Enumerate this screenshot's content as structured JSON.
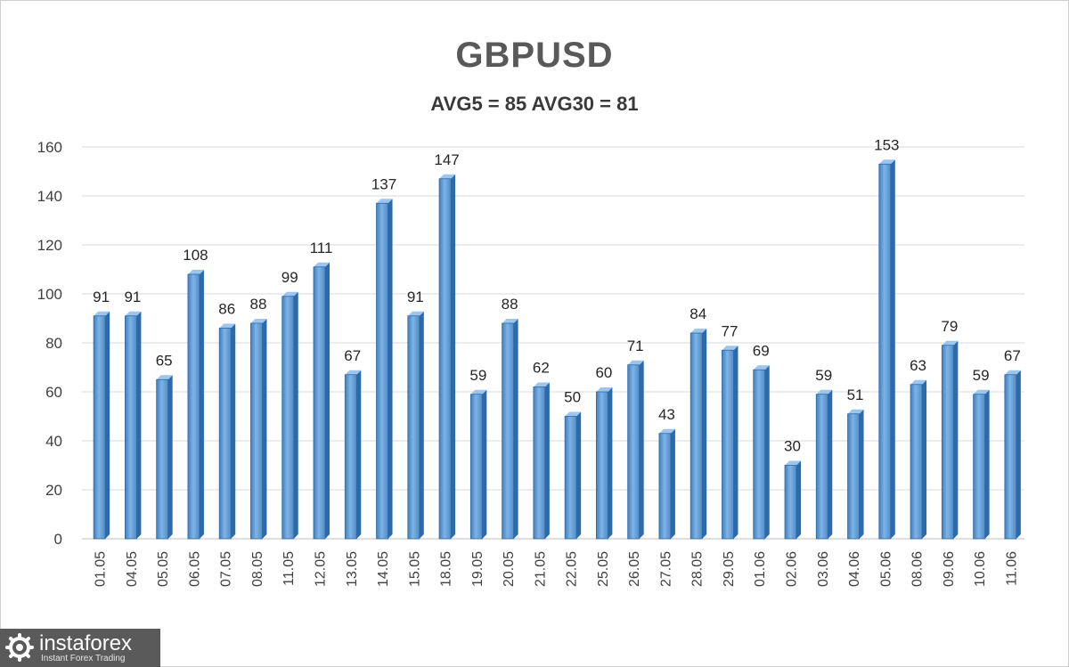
{
  "chart_data": {
    "type": "bar",
    "title": "GBPUSD",
    "subtitle": "AVG5 = 85 AVG30 = 81",
    "categories": [
      "01.05",
      "04.05",
      "05.05",
      "06.05",
      "07.05",
      "08.05",
      "11.05",
      "12.05",
      "13.05",
      "14.05",
      "15.05",
      "18.05",
      "19.05",
      "20.05",
      "21.05",
      "22.05",
      "25.05",
      "26.05",
      "27.05",
      "28.05",
      "29.05",
      "01.06",
      "02.06",
      "03.06",
      "04.06",
      "05.06",
      "08.06",
      "09.06",
      "10.06",
      "11.06"
    ],
    "values": [
      91,
      91,
      65,
      108,
      86,
      88,
      99,
      111,
      67,
      137,
      91,
      147,
      59,
      88,
      62,
      50,
      60,
      71,
      43,
      84,
      77,
      69,
      30,
      59,
      51,
      153,
      63,
      79,
      59,
      67
    ],
    "ylim": [
      0,
      160
    ],
    "yticks": [
      0,
      20,
      40,
      60,
      80,
      100,
      120,
      140,
      160
    ],
    "grid": true,
    "legend": "none",
    "bar_color": "#5b9bd5",
    "bar_edge_color": "#2e6aa6"
  },
  "logo": {
    "name": "instaforex",
    "tagline": "Instant Forex Trading",
    "icon": "gear-icon"
  }
}
